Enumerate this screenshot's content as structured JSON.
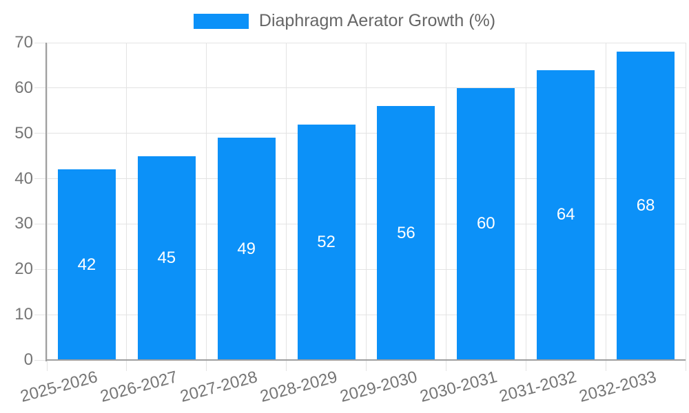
{
  "chart_data": {
    "type": "bar",
    "title": "Diaphragm Aerator Growth (%)",
    "legend": {
      "label": "Diaphragm Aerator Growth (%)",
      "position": "top"
    },
    "categories": [
      "2025-2026",
      "2026-2027",
      "2027-2028",
      "2028-2029",
      "2029-2030",
      "2030-2031",
      "2031-2032",
      "2032-2033"
    ],
    "values": [
      42,
      45,
      49,
      52,
      56,
      60,
      64,
      68
    ],
    "value_labels": [
      "42",
      "45",
      "49",
      "52",
      "56",
      "60",
      "64",
      "68"
    ],
    "xlabel": "",
    "ylabel": "",
    "ylim": [
      0,
      70
    ],
    "yticks": [
      0,
      10,
      20,
      30,
      40,
      50,
      60,
      70
    ],
    "grid": true,
    "colors": {
      "bar": "#0C91F8",
      "grid": "#E3E3E3",
      "axis": "#9E9E9E",
      "tick_label": "#757575",
      "legend_text": "#666666",
      "value_label": "#FFFFFF"
    }
  }
}
